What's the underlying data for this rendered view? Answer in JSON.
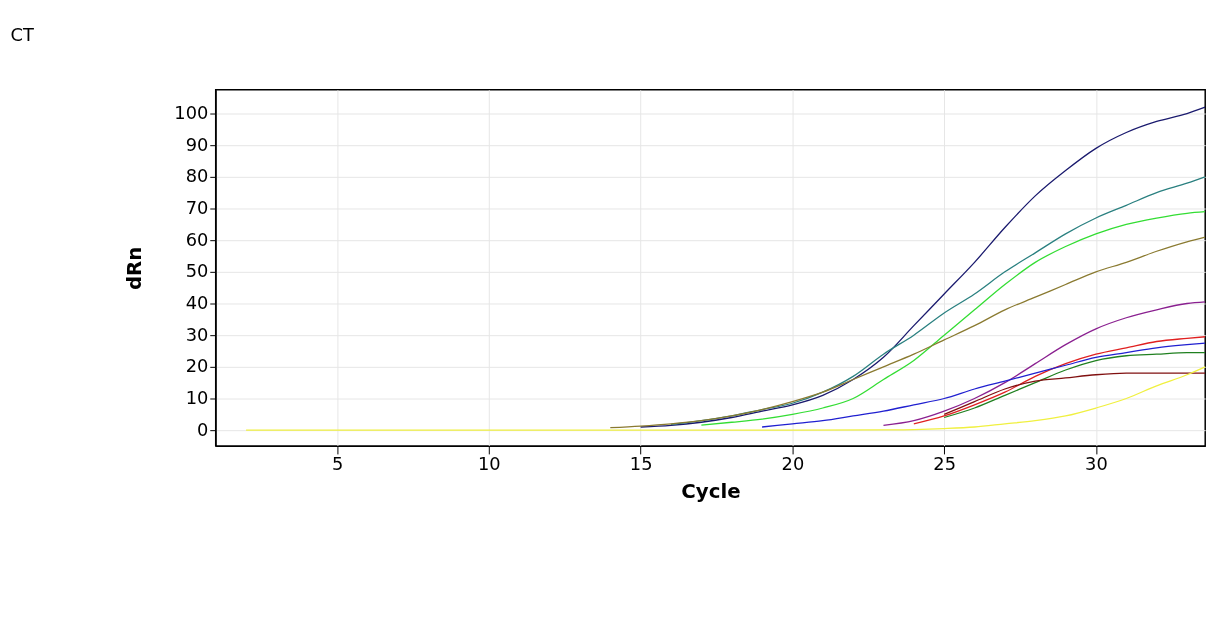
{
  "chart_data": {
    "type": "line",
    "title": "CT",
    "xlabel": "Cycle",
    "ylabel": "dRn",
    "xlim": [
      1,
      33.6
    ],
    "xticks": [
      5,
      10,
      15,
      20,
      25,
      30
    ],
    "ylim": [
      -5,
      107.5
    ],
    "yticks": [
      0,
      10,
      20,
      30,
      40,
      50,
      60,
      70,
      80,
      90,
      100
    ],
    "grid": true,
    "legend": false,
    "marker": "none",
    "line_style": "solid",
    "series": [
      {
        "color": "#1a1a6e",
        "x": [
          15,
          16,
          17,
          18,
          19,
          20,
          21,
          22,
          23,
          24,
          25,
          26,
          27,
          28,
          29,
          30,
          31,
          32,
          33,
          33.6
        ],
        "values": [
          1,
          1.5,
          2.5,
          4,
          6,
          8,
          11,
          16,
          23,
          33,
          43,
          53,
          64,
          74,
          82,
          89,
          94,
          97.5,
          100,
          102
        ]
      },
      {
        "color": "#2a8080",
        "x": [
          16,
          17,
          18,
          19,
          20,
          21,
          22,
          23,
          24,
          25,
          26,
          27,
          28,
          29,
          30,
          31,
          32,
          33,
          33.6
        ],
        "values": [
          1.8,
          3,
          4.5,
          6.5,
          8.5,
          12,
          17,
          24,
          30,
          37,
          43,
          50,
          56,
          62,
          67,
          71,
          75,
          78,
          80
        ]
      },
      {
        "color": "#33dd33",
        "x": [
          17,
          18,
          19,
          20,
          21,
          22,
          23,
          24,
          25,
          26,
          27,
          28,
          29,
          30,
          31,
          32,
          33,
          33.6
        ],
        "values": [
          1.6,
          2.5,
          3.5,
          5,
          7,
          10,
          16,
          22,
          30,
          38,
          46,
          53,
          58,
          62,
          65,
          67,
          68.5,
          69
        ]
      },
      {
        "color": "#8a7a30",
        "x": [
          14,
          15,
          16,
          17,
          18,
          19,
          20,
          21,
          22,
          23,
          24,
          25,
          26,
          27,
          28,
          29,
          30,
          31,
          32,
          33,
          33.6
        ],
        "values": [
          0.8,
          1.3,
          2,
          3,
          4.5,
          6.5,
          9,
          12,
          16,
          20,
          24,
          28.5,
          33,
          38,
          42,
          46,
          50,
          53,
          56.5,
          59.5,
          61
        ]
      },
      {
        "color": "#8a2090",
        "x": [
          23,
          24,
          25,
          26,
          27,
          28,
          29,
          30,
          31,
          32,
          33,
          33.6
        ],
        "values": [
          1.5,
          3,
          6,
          10,
          15,
          21,
          27,
          32,
          35.5,
          38,
          40,
          40.5
        ]
      },
      {
        "color": "#e02020",
        "x": [
          24,
          25,
          26,
          27,
          28,
          29,
          30,
          31,
          32,
          33,
          33.6
        ],
        "values": [
          2,
          4.5,
          8,
          12,
          17,
          21,
          24,
          26,
          28,
          29,
          29.5
        ]
      },
      {
        "color": "#2020d0",
        "x": [
          19,
          20,
          21,
          22,
          23,
          24,
          25,
          26,
          27,
          28,
          29,
          30,
          31,
          32,
          33,
          33.6
        ],
        "values": [
          1,
          2,
          3,
          4.5,
          6,
          8,
          10,
          13,
          15.5,
          18,
          20.5,
          23,
          24.5,
          26,
          27,
          27.5
        ]
      },
      {
        "color": "#208020",
        "x": [
          25,
          26,
          27,
          28,
          29,
          30,
          31,
          32,
          33,
          33.6
        ],
        "values": [
          4,
          7,
          11,
          15,
          19,
          22,
          23.5,
          24,
          24.5,
          24.5
        ]
      },
      {
        "color": "#801010",
        "x": [
          25,
          26,
          27,
          28,
          29,
          30,
          31,
          32,
          33,
          33.6
        ],
        "values": [
          5,
          9,
          13,
          15.5,
          16.5,
          17.5,
          18,
          18,
          18,
          18
        ]
      },
      {
        "color": "#f0f040",
        "x": [
          2,
          10,
          15,
          20,
          23,
          24,
          25,
          26,
          27,
          28,
          29,
          30,
          31,
          32,
          33,
          33.6
        ],
        "values": [
          0,
          0,
          0,
          0,
          0.1,
          0.2,
          0.5,
          1,
          2,
          3,
          4.5,
          7,
          10,
          14,
          17.5,
          20
        ]
      }
    ]
  }
}
